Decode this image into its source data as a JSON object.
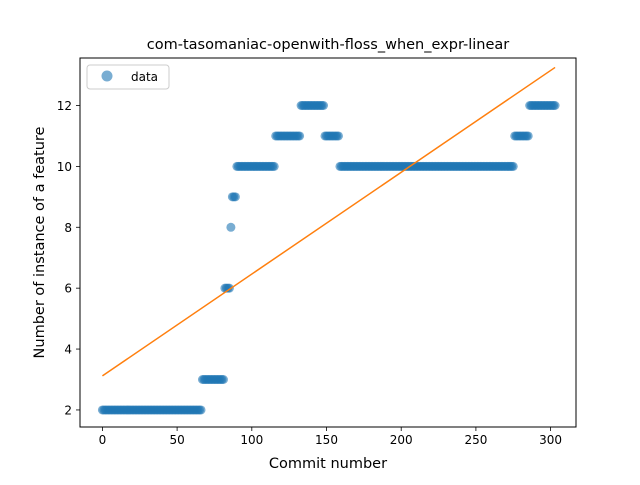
{
  "chart_data": {
    "type": "scatter",
    "title": "com-tasomaniac-openwith-floss_when_expr-linear",
    "xlabel": "Commit number",
    "ylabel": "Number of instance of a feature",
    "xlim": [
      -15,
      317
    ],
    "ylim": [
      1.44,
      13.56
    ],
    "xticks": [
      0,
      50,
      100,
      150,
      200,
      250,
      300
    ],
    "yticks": [
      2,
      4,
      6,
      8,
      10,
      12
    ],
    "grid": false,
    "legend": {
      "location": "upper-left",
      "entries": [
        "data"
      ]
    },
    "series": [
      {
        "name": "data",
        "kind": "points",
        "color": "#1f77b4",
        "alpha": 0.6,
        "segments": [
          {
            "x_start": 0,
            "x_end": 66,
            "y": 2
          },
          {
            "x_start": 67,
            "x_end": 81,
            "y": 3
          },
          {
            "x_start": 82,
            "x_end": 85,
            "y": 6
          },
          {
            "x_start": 86,
            "x_end": 86,
            "y": 8
          },
          {
            "x_start": 87,
            "x_end": 89,
            "y": 9
          },
          {
            "x_start": 90,
            "x_end": 115,
            "y": 10
          },
          {
            "x_start": 116,
            "x_end": 132,
            "y": 11
          },
          {
            "x_start": 133,
            "x_end": 148,
            "y": 12
          },
          {
            "x_start": 149,
            "x_end": 158,
            "y": 11
          },
          {
            "x_start": 159,
            "x_end": 275,
            "y": 10
          },
          {
            "x_start": 276,
            "x_end": 285,
            "y": 11
          },
          {
            "x_start": 286,
            "x_end": 303,
            "y": 12
          }
        ]
      },
      {
        "name": "",
        "kind": "line",
        "color": "#ff7f0e",
        "points": [
          [
            0,
            3.12
          ],
          [
            303,
            13.25
          ]
        ]
      }
    ]
  }
}
